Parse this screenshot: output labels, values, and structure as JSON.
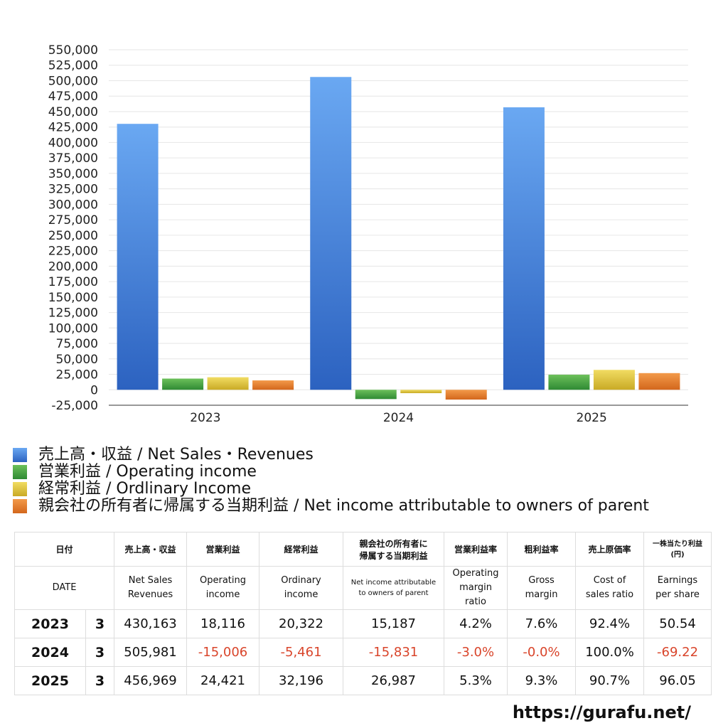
{
  "chart_data": {
    "type": "bar",
    "categories": [
      "2023",
      "2024",
      "2025"
    ],
    "ylim": [
      -25000,
      550000
    ],
    "yticks": [
      550000,
      525000,
      500000,
      475000,
      450000,
      425000,
      400000,
      375000,
      350000,
      325000,
      300000,
      275000,
      250000,
      225000,
      200000,
      175000,
      150000,
      125000,
      100000,
      75000,
      50000,
      25000,
      0,
      -25000
    ],
    "ytick_labels": [
      "550,000",
      "525,000",
      "500,000",
      "475,000",
      "450,000",
      "425,000",
      "400,000",
      "375,000",
      "350,000",
      "325,000",
      "300,000",
      "275,000",
      "250,000",
      "225,000",
      "200,000",
      "175,000",
      "150,000",
      "125,000",
      "100,000",
      "75,000",
      "50,000",
      "25,000",
      "0",
      "-25,000"
    ],
    "grid": true,
    "legend_position": "bottom",
    "series": [
      {
        "name": "売上高・収益 / Net Sales・Revenues",
        "values": [
          430163,
          505981,
          456969
        ],
        "color_top": "#6aa8f2",
        "color_bottom": "#2c62c0"
      },
      {
        "name": "営業利益 / Operating income",
        "values": [
          18116,
          -15006,
          24421
        ],
        "color_top": "#6cc05a",
        "color_bottom": "#2f8a34"
      },
      {
        "name": "経常利益 / Ordlinary Income",
        "values": [
          20322,
          -5461,
          32196
        ],
        "color_top": "#f1dc62",
        "color_bottom": "#c9aa25"
      },
      {
        "name": "親会社の所有者に帰属する当期利益 / Net income attributable to owners of parent",
        "values": [
          15187,
          -15831,
          26987
        ],
        "color_top": "#f39a4a",
        "color_bottom": "#d3671c"
      }
    ]
  },
  "table": {
    "header_jp": {
      "date": "日付",
      "sales": "売上高・収益",
      "operating": "営業利益",
      "ordinary": "経常利益",
      "net_line1": "親会社の所有者に",
      "net_line2": "帰属する当期利益",
      "op_margin": "営業利益率",
      "gross": "粗利益率",
      "cost": "売上原価率",
      "eps_line1": "一株当たり利益",
      "eps_line2": "(円)"
    },
    "header_en": {
      "date": "DATE",
      "sales_l1": "Net Sales",
      "sales_l2": "Revenues",
      "operating_l1": "Operating",
      "operating_l2": "income",
      "ordinary_l1": "Ordinary",
      "ordinary_l2": "income",
      "net_l1": "Net income attributable",
      "net_l2": "to owners of parent",
      "op_margin_l1": "Operating",
      "op_margin_l2": "margin",
      "op_margin_l3": "ratio",
      "gross_l1": "Gross",
      "gross_l2": "margin",
      "cost_l1": "Cost of",
      "cost_l2": "sales ratio",
      "eps_l1": "Earnings",
      "eps_l2": "per share"
    },
    "rows": [
      {
        "year": "2023",
        "month": "3",
        "sales": "430,163",
        "operating": "18,116",
        "ordinary": "20,322",
        "net": "15,187",
        "op_margin": "4.2%",
        "gross": "7.6%",
        "cost": "92.4%",
        "eps": "50.54"
      },
      {
        "year": "2024",
        "month": "3",
        "sales": "505,981",
        "operating": "-15,006",
        "ordinary": "-5,461",
        "net": "-15,831",
        "op_margin": "-3.0%",
        "gross": "-0.0%",
        "cost": "100.0%",
        "eps": "-69.22"
      },
      {
        "year": "2025",
        "month": "3",
        "sales": "456,969",
        "operating": "24,421",
        "ordinary": "32,196",
        "net": "26,987",
        "op_margin": "5.3%",
        "gross": "9.3%",
        "cost": "90.7%",
        "eps": "96.05"
      }
    ]
  },
  "negative_color": "#d9452b",
  "site_url": "https://gurafu.net/"
}
